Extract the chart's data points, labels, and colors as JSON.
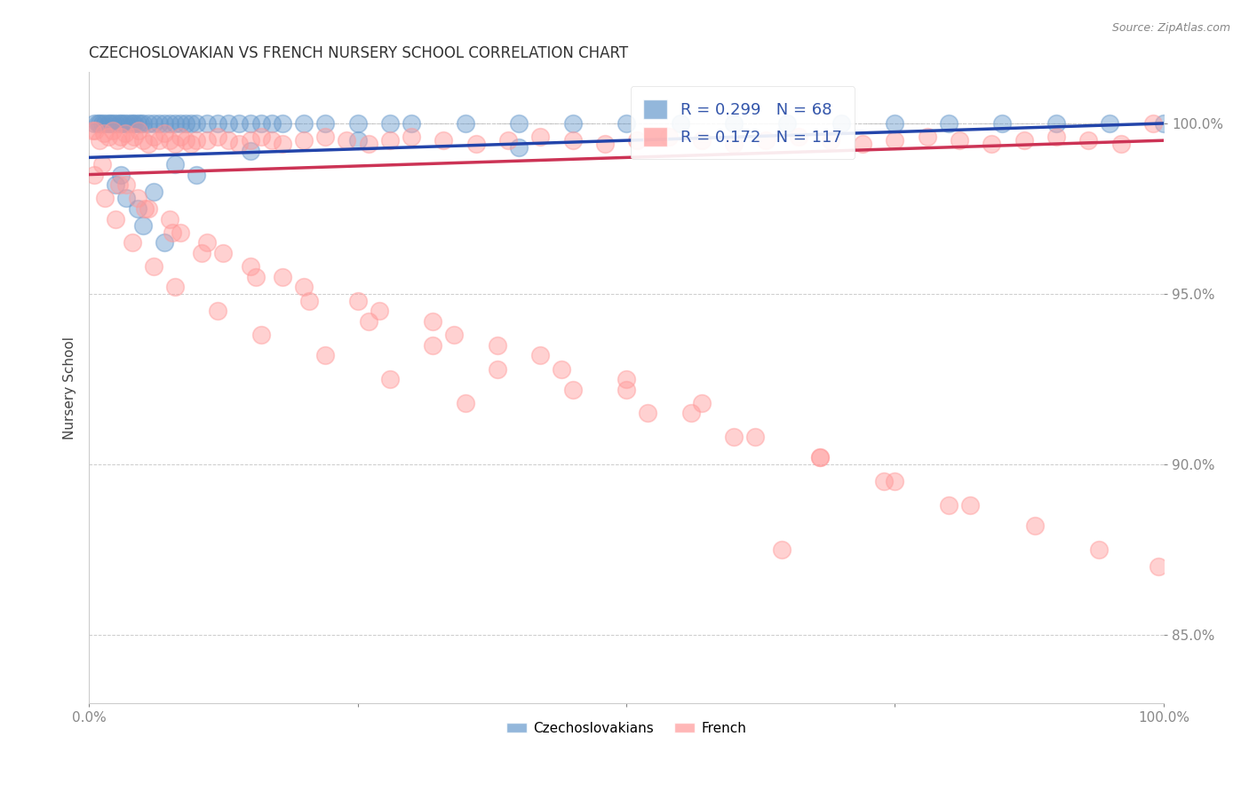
{
  "title": "CZECHOSLOVAKIAN VS FRENCH NURSERY SCHOOL CORRELATION CHART",
  "source_text": "Source: ZipAtlas.com",
  "ylabel": "Nursery School",
  "xlim": [
    0.0,
    100.0
  ],
  "ylim": [
    83.0,
    101.5
  ],
  "yticks": [
    85.0,
    90.0,
    95.0,
    100.0
  ],
  "ytick_labels": [
    "85.0%",
    "90.0%",
    "95.0%",
    "100.0%"
  ],
  "blue_R": 0.299,
  "blue_N": 68,
  "pink_R": 0.172,
  "pink_N": 117,
  "blue_color": "#6699CC",
  "pink_color": "#FF9999",
  "blue_line_color": "#2244AA",
  "pink_line_color": "#CC3355",
  "legend_label_blue": "Czechoslovakians",
  "legend_label_pink": "French",
  "blue_scatter_x": [
    0.5,
    0.8,
    1.0,
    1.2,
    1.5,
    1.8,
    2.0,
    2.2,
    2.5,
    2.8,
    3.0,
    3.2,
    3.5,
    3.8,
    4.0,
    4.2,
    4.5,
    4.8,
    5.0,
    5.5,
    6.0,
    6.5,
    7.0,
    7.5,
    8.0,
    8.5,
    9.0,
    9.5,
    10.0,
    11.0,
    12.0,
    13.0,
    14.0,
    15.0,
    16.0,
    17.0,
    18.0,
    20.0,
    22.0,
    25.0,
    28.0,
    30.0,
    35.0,
    40.0,
    45.0,
    50.0,
    55.0,
    60.0,
    65.0,
    70.0,
    75.0,
    80.0,
    85.0,
    90.0,
    95.0,
    100.0,
    3.0,
    5.0,
    7.0,
    15.0,
    25.0,
    40.0,
    3.5,
    6.0,
    10.0,
    2.5,
    4.5,
    8.0
  ],
  "blue_scatter_y": [
    100.0,
    100.0,
    100.0,
    100.0,
    100.0,
    100.0,
    100.0,
    100.0,
    100.0,
    100.0,
    100.0,
    100.0,
    100.0,
    100.0,
    100.0,
    100.0,
    100.0,
    100.0,
    100.0,
    100.0,
    100.0,
    100.0,
    100.0,
    100.0,
    100.0,
    100.0,
    100.0,
    100.0,
    100.0,
    100.0,
    100.0,
    100.0,
    100.0,
    100.0,
    100.0,
    100.0,
    100.0,
    100.0,
    100.0,
    100.0,
    100.0,
    100.0,
    100.0,
    100.0,
    100.0,
    100.0,
    100.0,
    100.0,
    100.0,
    100.0,
    100.0,
    100.0,
    100.0,
    100.0,
    100.0,
    100.0,
    98.5,
    97.0,
    96.5,
    99.2,
    99.5,
    99.3,
    97.8,
    98.0,
    98.5,
    98.2,
    97.5,
    98.8
  ],
  "pink_scatter_x": [
    0.3,
    0.6,
    1.0,
    1.4,
    1.8,
    2.2,
    2.6,
    3.0,
    3.4,
    3.8,
    4.2,
    4.6,
    5.0,
    5.5,
    6.0,
    6.5,
    7.0,
    7.5,
    8.0,
    8.5,
    9.0,
    9.5,
    10.0,
    11.0,
    12.0,
    13.0,
    14.0,
    15.0,
    16.0,
    17.0,
    18.0,
    20.0,
    22.0,
    24.0,
    26.0,
    28.0,
    30.0,
    33.0,
    36.0,
    39.0,
    42.0,
    45.0,
    48.0,
    51.0,
    54.0,
    57.0,
    60.0,
    63.0,
    66.0,
    69.0,
    72.0,
    75.0,
    78.0,
    81.0,
    84.0,
    87.0,
    90.0,
    93.0,
    96.0,
    99.0,
    0.5,
    1.5,
    2.5,
    4.0,
    6.0,
    8.0,
    12.0,
    16.0,
    22.0,
    28.0,
    35.0,
    3.5,
    5.5,
    8.5,
    12.5,
    18.0,
    25.0,
    32.0,
    38.0,
    44.0,
    50.0,
    56.0,
    62.0,
    68.0,
    74.0,
    80.0,
    1.2,
    2.8,
    5.2,
    7.8,
    10.5,
    15.5,
    20.5,
    26.0,
    32.0,
    38.0,
    45.0,
    52.0,
    60.0,
    68.0,
    75.0,
    82.0,
    88.0,
    94.0,
    99.5,
    4.5,
    7.5,
    11.0,
    15.0,
    20.0,
    27.0,
    34.0,
    42.0,
    50.0,
    57.0,
    64.5
  ],
  "pink_scatter_y": [
    99.8,
    99.8,
    99.5,
    99.7,
    99.6,
    99.8,
    99.5,
    99.6,
    99.7,
    99.5,
    99.6,
    99.8,
    99.5,
    99.4,
    99.6,
    99.5,
    99.7,
    99.5,
    99.4,
    99.6,
    99.5,
    99.4,
    99.5,
    99.5,
    99.6,
    99.5,
    99.4,
    99.5,
    99.6,
    99.5,
    99.4,
    99.5,
    99.6,
    99.5,
    99.4,
    99.5,
    99.6,
    99.5,
    99.4,
    99.5,
    99.6,
    99.5,
    99.4,
    99.5,
    99.6,
    99.5,
    99.4,
    99.5,
    99.6,
    99.5,
    99.4,
    99.5,
    99.6,
    99.5,
    99.4,
    99.5,
    99.6,
    99.5,
    99.4,
    100.0,
    98.5,
    97.8,
    97.2,
    96.5,
    95.8,
    95.2,
    94.5,
    93.8,
    93.2,
    92.5,
    91.8,
    98.2,
    97.5,
    96.8,
    96.2,
    95.5,
    94.8,
    94.2,
    93.5,
    92.8,
    92.2,
    91.5,
    90.8,
    90.2,
    89.5,
    88.8,
    98.8,
    98.2,
    97.5,
    96.8,
    96.2,
    95.5,
    94.8,
    94.2,
    93.5,
    92.8,
    92.2,
    91.5,
    90.8,
    90.2,
    89.5,
    88.8,
    88.2,
    87.5,
    87.0,
    97.8,
    97.2,
    96.5,
    95.8,
    95.2,
    94.5,
    93.8,
    93.2,
    92.5,
    91.8,
    87.5
  ]
}
